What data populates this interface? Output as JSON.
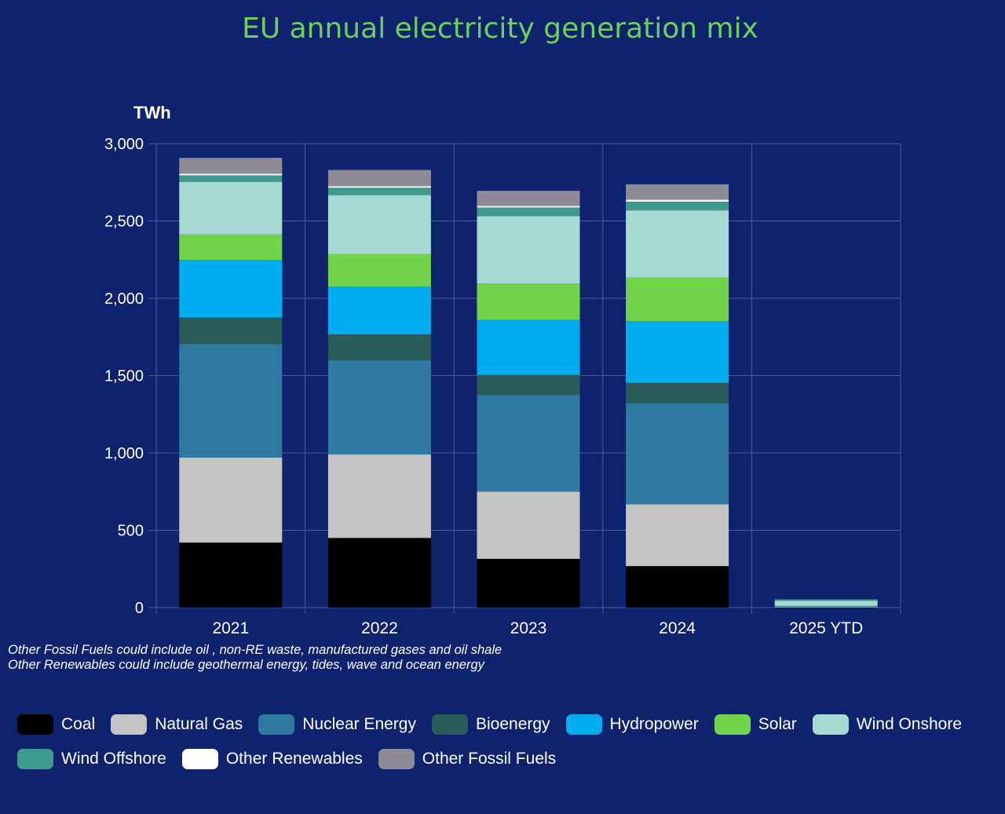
{
  "chart_data": {
    "type": "bar",
    "stacked": true,
    "title": "EU annual electricity generation mix",
    "ylabel": "TWh",
    "xlabel": "",
    "ylim": [
      0,
      3000
    ],
    "yticks": [
      0,
      500,
      1000,
      1500,
      2000,
      2500,
      3000
    ],
    "ytick_labels": [
      "0",
      "500",
      "1,000",
      "1,500",
      "2,000",
      "2,500",
      "3,000"
    ],
    "categories": [
      "2021",
      "2022",
      "2023",
      "2024",
      "2025 YTD"
    ],
    "grid": true,
    "legend_position": "bottom",
    "series": [
      {
        "name": "Coal",
        "color": "#000000",
        "values": [
          420,
          450,
          315,
          268,
          2
        ]
      },
      {
        "name": "Natural Gas",
        "color": "#c4c4c4",
        "values": [
          550,
          540,
          435,
          400,
          3
        ]
      },
      {
        "name": "Nuclear Energy",
        "color": "#2f7aa0",
        "values": [
          733,
          610,
          625,
          653,
          4
        ]
      },
      {
        "name": "Bioenergy",
        "color": "#2a5c5a",
        "values": [
          172,
          167,
          130,
          132,
          1
        ]
      },
      {
        "name": "Hydropower",
        "color": "#00aeef",
        "values": [
          373,
          308,
          355,
          400,
          2
        ]
      },
      {
        "name": "Solar",
        "color": "#72d44a",
        "values": [
          165,
          210,
          235,
          280,
          1
        ]
      },
      {
        "name": "Wind Onshore",
        "color": "#a6d8d4",
        "values": [
          340,
          382,
          437,
          435,
          30
        ]
      },
      {
        "name": "Wind Offshore",
        "color": "#3f9a8e",
        "values": [
          42,
          48,
          55,
          57,
          10
        ]
      },
      {
        "name": "Other Renewables",
        "color": "#ffffff",
        "values": [
          10,
          10,
          10,
          12,
          0
        ]
      },
      {
        "name": "Other Fossil Fuels",
        "color": "#8e8a96",
        "values": [
          103,
          105,
          98,
          100,
          0
        ]
      }
    ],
    "notes": [
      "Other Fossil Fuels could include oil , non-RE waste, manufactured gases and oil shale",
      "Other Renewables could include geothermal energy, tides, wave and ocean energy"
    ]
  },
  "colors": {
    "background": "#0f226e",
    "title": "#6ecf5a",
    "grid": "#4a5aa0",
    "text": "#ffffff"
  }
}
